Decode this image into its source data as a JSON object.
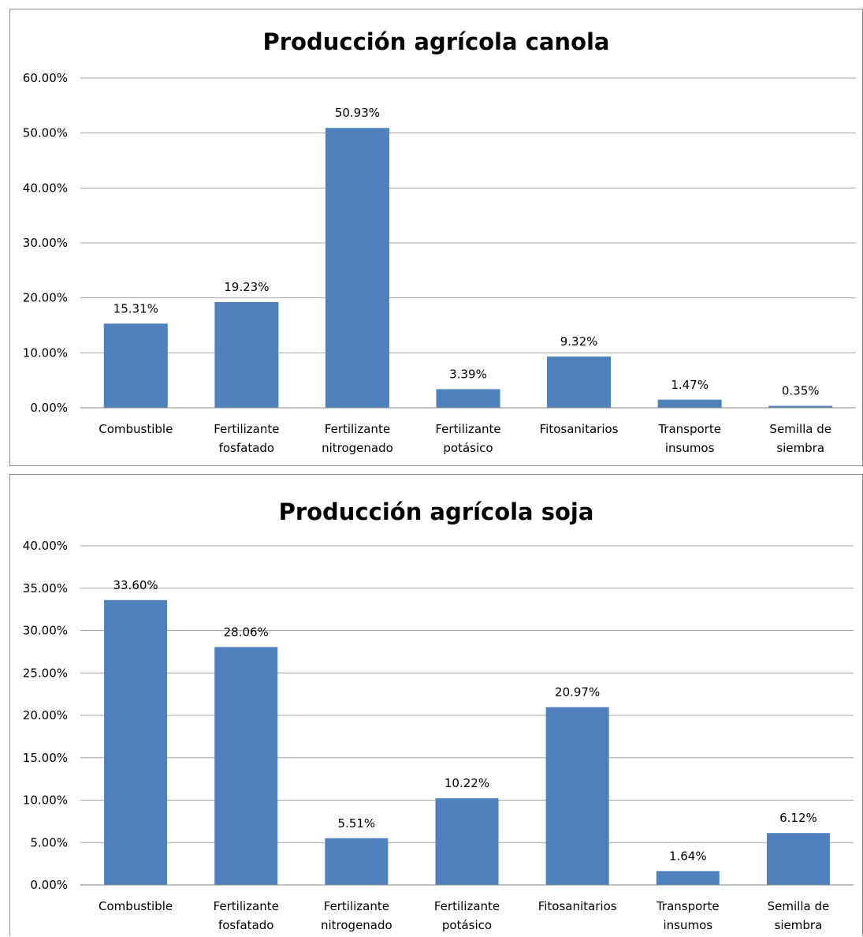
{
  "chart_data": [
    {
      "type": "bar",
      "title": "Producción agrícola canola",
      "categories": [
        [
          "Combustible"
        ],
        [
          "Fertilizante",
          "fosfatado"
        ],
        [
          "Fertilizante",
          "nitrogenado"
        ],
        [
          "Fertilizante",
          "potásico"
        ],
        [
          "Fitosanitarios"
        ],
        [
          "Transporte",
          "insumos"
        ],
        [
          "Semilla de",
          "siembra"
        ]
      ],
      "values": [
        15.31,
        19.23,
        50.93,
        3.39,
        9.32,
        1.47,
        0.35
      ],
      "data_labels": [
        "15.31%",
        "19.23%",
        "50.93%",
        "3.39%",
        "9.32%",
        "1.47%",
        "0.35%"
      ],
      "yticks": [
        "0.00%",
        "10.00%",
        "20.00%",
        "30.00%",
        "40.00%",
        "50.00%",
        "60.00%"
      ],
      "ylim": [
        0,
        60
      ],
      "grid": true,
      "bar_color": "#4f81bd",
      "grid_color": "#a6a6a6"
    },
    {
      "type": "bar",
      "title": "Producción agrícola soja",
      "categories": [
        [
          "Combustible"
        ],
        [
          "Fertilizante",
          "fosfatado"
        ],
        [
          "Fertilizante",
          "nitrogenado"
        ],
        [
          "Fertilizante",
          "potásico"
        ],
        [
          "Fitosanitarios"
        ],
        [
          "Transporte",
          "insumos"
        ],
        [
          "Semilla de",
          "siembra"
        ]
      ],
      "values": [
        33.6,
        28.06,
        5.51,
        10.22,
        20.97,
        1.64,
        6.12
      ],
      "data_labels": [
        "33.60%",
        "28.06%",
        "5.51%",
        "10.22%",
        "20.97%",
        "1.64%",
        "6.12%"
      ],
      "yticks": [
        "0.00%",
        "5.00%",
        "10.00%",
        "15.00%",
        "20.00%",
        "25.00%",
        "30.00%",
        "35.00%",
        "40.00%"
      ],
      "ylim": [
        0,
        40
      ],
      "grid": true,
      "bar_color": "#4f81bd",
      "grid_color": "#a6a6a6"
    }
  ]
}
